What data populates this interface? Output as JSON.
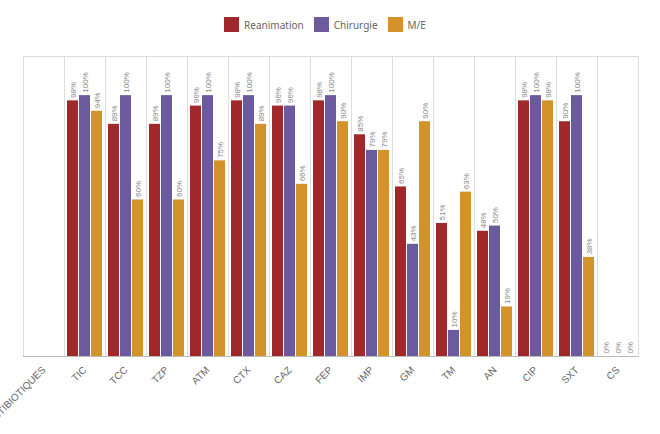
{
  "chart_data": {
    "type": "bar",
    "categories": [
      "ANTIBIOTIQUES",
      "TIC",
      "TCC",
      "TZP",
      "ATM",
      "CTX",
      "CAZ",
      "FEP",
      "IMP",
      "GM",
      "TM",
      "AN",
      "CIP",
      "SXT",
      "CS"
    ],
    "series": [
      {
        "name": "Reanimation",
        "color": "#A0282A",
        "values": [
          0,
          98,
          89,
          89,
          96,
          98,
          96,
          98,
          85,
          65,
          51,
          48,
          98,
          90,
          0
        ],
        "value_labels": [
          null,
          "98%",
          "89%",
          "89%",
          "96%",
          "98%",
          "96%",
          "98%",
          "85%",
          "65%",
          "51%",
          "48%",
          "98%",
          "90%",
          "0%"
        ]
      },
      {
        "name": "Chirurgie",
        "color": "#6B5B9E",
        "values": [
          0,
          100,
          100,
          100,
          100,
          100,
          96,
          100,
          79,
          43,
          10,
          50,
          100,
          100,
          0
        ],
        "value_labels": [
          null,
          "100%",
          "100%",
          "100%",
          "100%",
          "100%",
          "96%",
          "100%",
          "79%",
          "43%",
          "10%",
          "50%",
          "100%",
          "100%",
          "0%"
        ]
      },
      {
        "name": "M/E",
        "color": "#D4922A",
        "values": [
          0,
          94,
          60,
          60,
          75,
          89,
          66,
          90,
          79,
          90,
          63,
          19,
          98,
          38,
          0
        ],
        "value_labels": [
          null,
          "94%",
          "60%",
          "60%",
          "75%",
          "89%",
          "66%",
          "90%",
          "79%",
          "90%",
          "63%",
          "19%",
          "98%",
          "38%",
          "0%"
        ]
      }
    ],
    "ylim": [
      0,
      115
    ],
    "data_labels": true,
    "tick_labels": "x",
    "grid": true,
    "legend": "top"
  }
}
